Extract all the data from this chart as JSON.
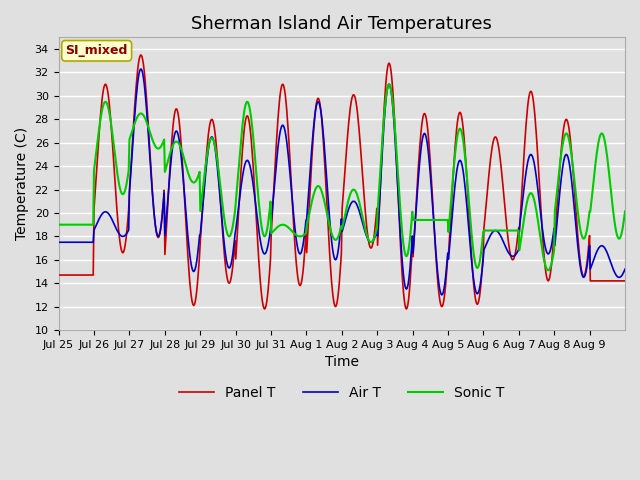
{
  "title": "Sherman Island Air Temperatures",
  "xlabel": "Time",
  "ylabel": "Temperature (C)",
  "ylim": [
    10,
    35
  ],
  "n_days": 16,
  "x_tick_labels": [
    "Jul 25",
    "Jul 26",
    "Jul 27",
    "Jul 28",
    "Jul 29",
    "Jul 30",
    "Jul 31",
    "Aug 1",
    "Aug 2",
    "Aug 3",
    "Aug 4",
    "Aug 5",
    "Aug 6",
    "Aug 7",
    "Aug 8",
    "Aug 9"
  ],
  "annotation_text": "SI_mixed",
  "background_color": "#e0e0e0",
  "plot_bg_color": "#e0e0e0",
  "grid_color": "white",
  "panel_color": "#cc0000",
  "air_color": "#0000cc",
  "sonic_color": "#00cc00",
  "legend_labels": [
    "Panel T",
    "Air T",
    "Sonic T"
  ],
  "panel_peaks": [
    14.7,
    31.0,
    33.5,
    28.9,
    28.0,
    28.3,
    31.0,
    29.8,
    30.1,
    32.8,
    28.5,
    28.6,
    26.5,
    30.4,
    28.0,
    14.2
  ],
  "panel_troughs": [
    14.7,
    16.6,
    17.9,
    12.1,
    14.0,
    11.8,
    13.8,
    12.0,
    17.0,
    11.8,
    12.0,
    12.2,
    16.0,
    14.2,
    14.6,
    14.2
  ],
  "air_peaks": [
    17.5,
    20.1,
    32.3,
    27.0,
    26.5,
    24.5,
    27.5,
    29.5,
    21.0,
    31.0,
    26.8,
    24.5,
    18.5,
    25.0,
    25.0,
    17.2
  ],
  "air_troughs": [
    17.5,
    18.0,
    18.0,
    15.0,
    15.3,
    16.5,
    16.5,
    16.0,
    17.5,
    13.5,
    13.0,
    13.1,
    16.3,
    16.5,
    14.5,
    14.5
  ],
  "sonic_peaks": [
    19.0,
    29.5,
    28.5,
    26.1,
    26.4,
    29.5,
    19.0,
    22.3,
    22.0,
    31.0,
    19.4,
    27.2,
    18.5,
    21.7,
    26.8,
    26.8
  ],
  "sonic_troughs": [
    19.0,
    21.6,
    25.5,
    22.6,
    18.0,
    18.0,
    18.0,
    17.7,
    17.5,
    16.3,
    19.4,
    15.3,
    18.5,
    15.1,
    17.8,
    17.8
  ],
  "title_fontsize": 13,
  "axis_fontsize": 10,
  "tick_fontsize": 8,
  "legend_fontsize": 10
}
